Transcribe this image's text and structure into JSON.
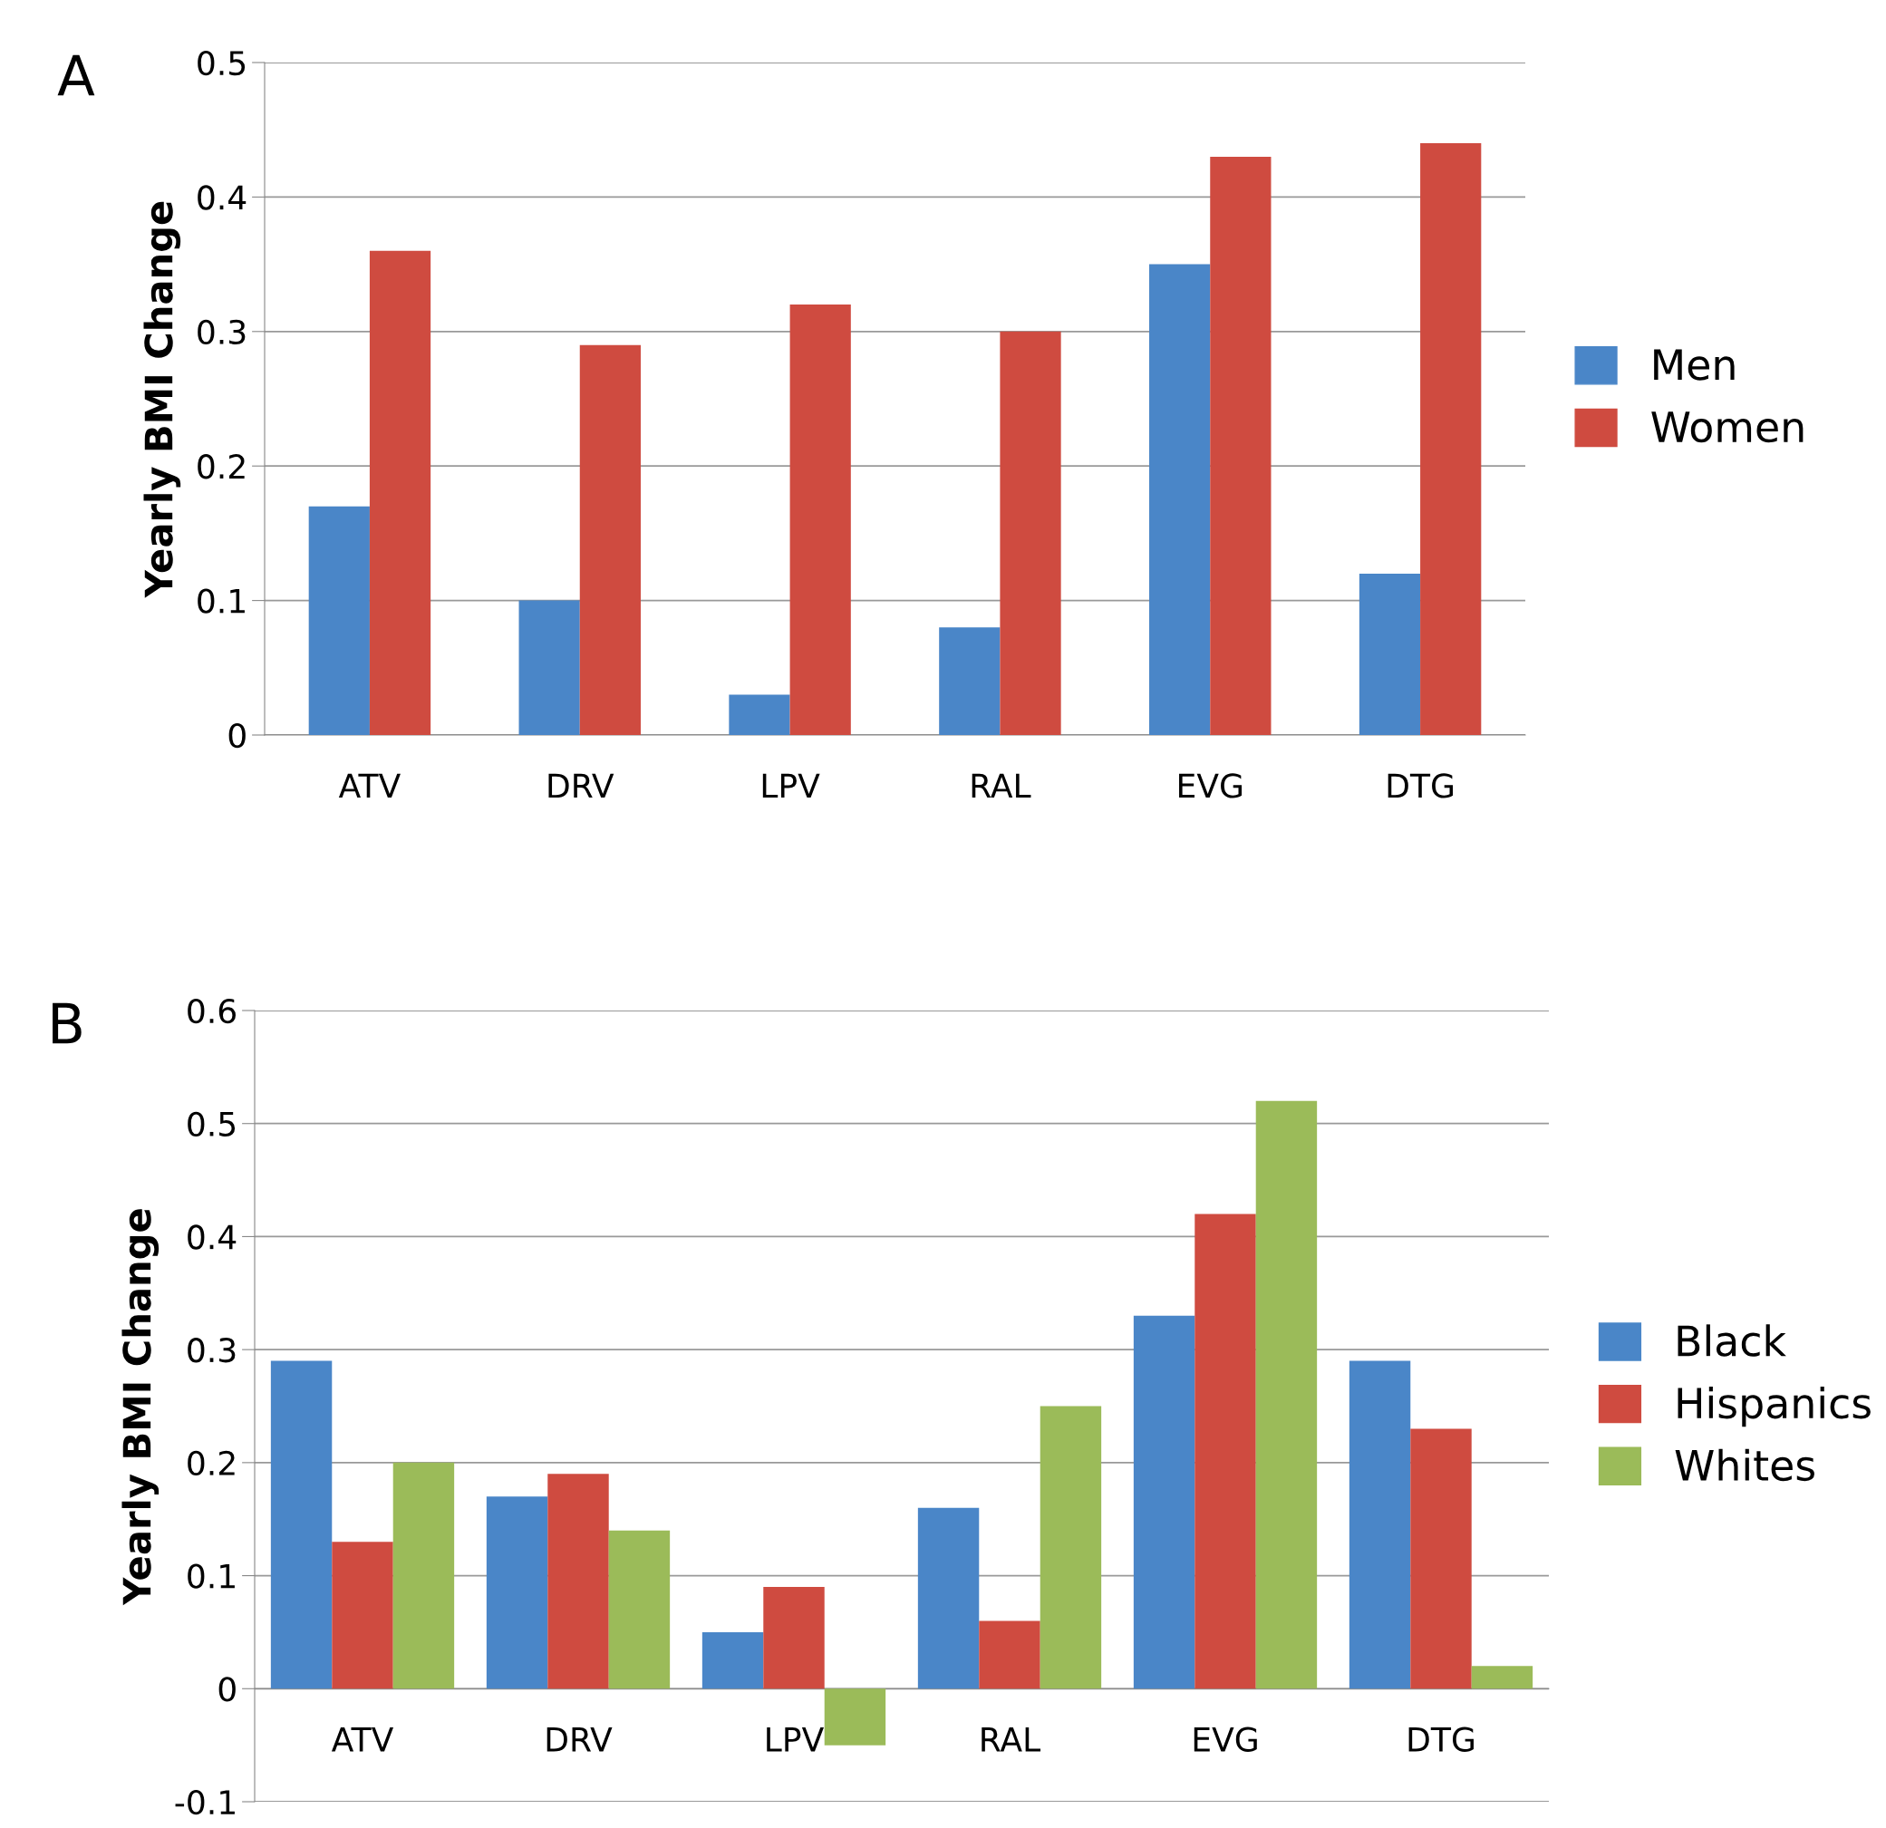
{
  "chart_data": [
    {
      "type": "bar",
      "annotations": [
        "A"
      ],
      "ylabel": "Yearly BMI Change",
      "categories": [
        "ATV",
        "DRV",
        "LPV",
        "RAL",
        "EVG",
        "DTG"
      ],
      "series": [
        {
          "name": "Men",
          "color": "#4a86c8",
          "values": [
            0.17,
            0.1,
            0.03,
            0.08,
            0.35,
            0.12
          ]
        },
        {
          "name": "Women",
          "color": "#cf4b40",
          "values": [
            0.36,
            0.29,
            0.32,
            0.3,
            0.43,
            0.44
          ]
        }
      ],
      "ylim": [
        0,
        0.5
      ],
      "yticks": [
        0,
        0.1,
        0.2,
        0.3,
        0.4,
        0.5
      ],
      "grid": "y",
      "legend": "right"
    },
    {
      "type": "bar",
      "annotations": [
        "B"
      ],
      "ylabel": "Yearly BMI Change",
      "categories": [
        "ATV",
        "DRV",
        "LPV",
        "RAL",
        "EVG",
        "DTG"
      ],
      "series": [
        {
          "name": "Black",
          "color": "#4a86c8",
          "values": [
            0.29,
            0.17,
            0.05,
            0.16,
            0.33,
            0.29
          ]
        },
        {
          "name": "Hispanics",
          "color": "#cf4b40",
          "values": [
            0.13,
            0.19,
            0.09,
            0.06,
            0.42,
            0.23
          ]
        },
        {
          "name": "Whites",
          "color": "#9bbb59",
          "values": [
            0.2,
            0.14,
            -0.05,
            0.25,
            0.52,
            0.02
          ]
        }
      ],
      "ylim": [
        -0.1,
        0.6
      ],
      "yticks": [
        -0.1,
        0,
        0.1,
        0.2,
        0.3,
        0.4,
        0.5,
        0.6
      ],
      "grid": "y",
      "legend": "right"
    }
  ]
}
